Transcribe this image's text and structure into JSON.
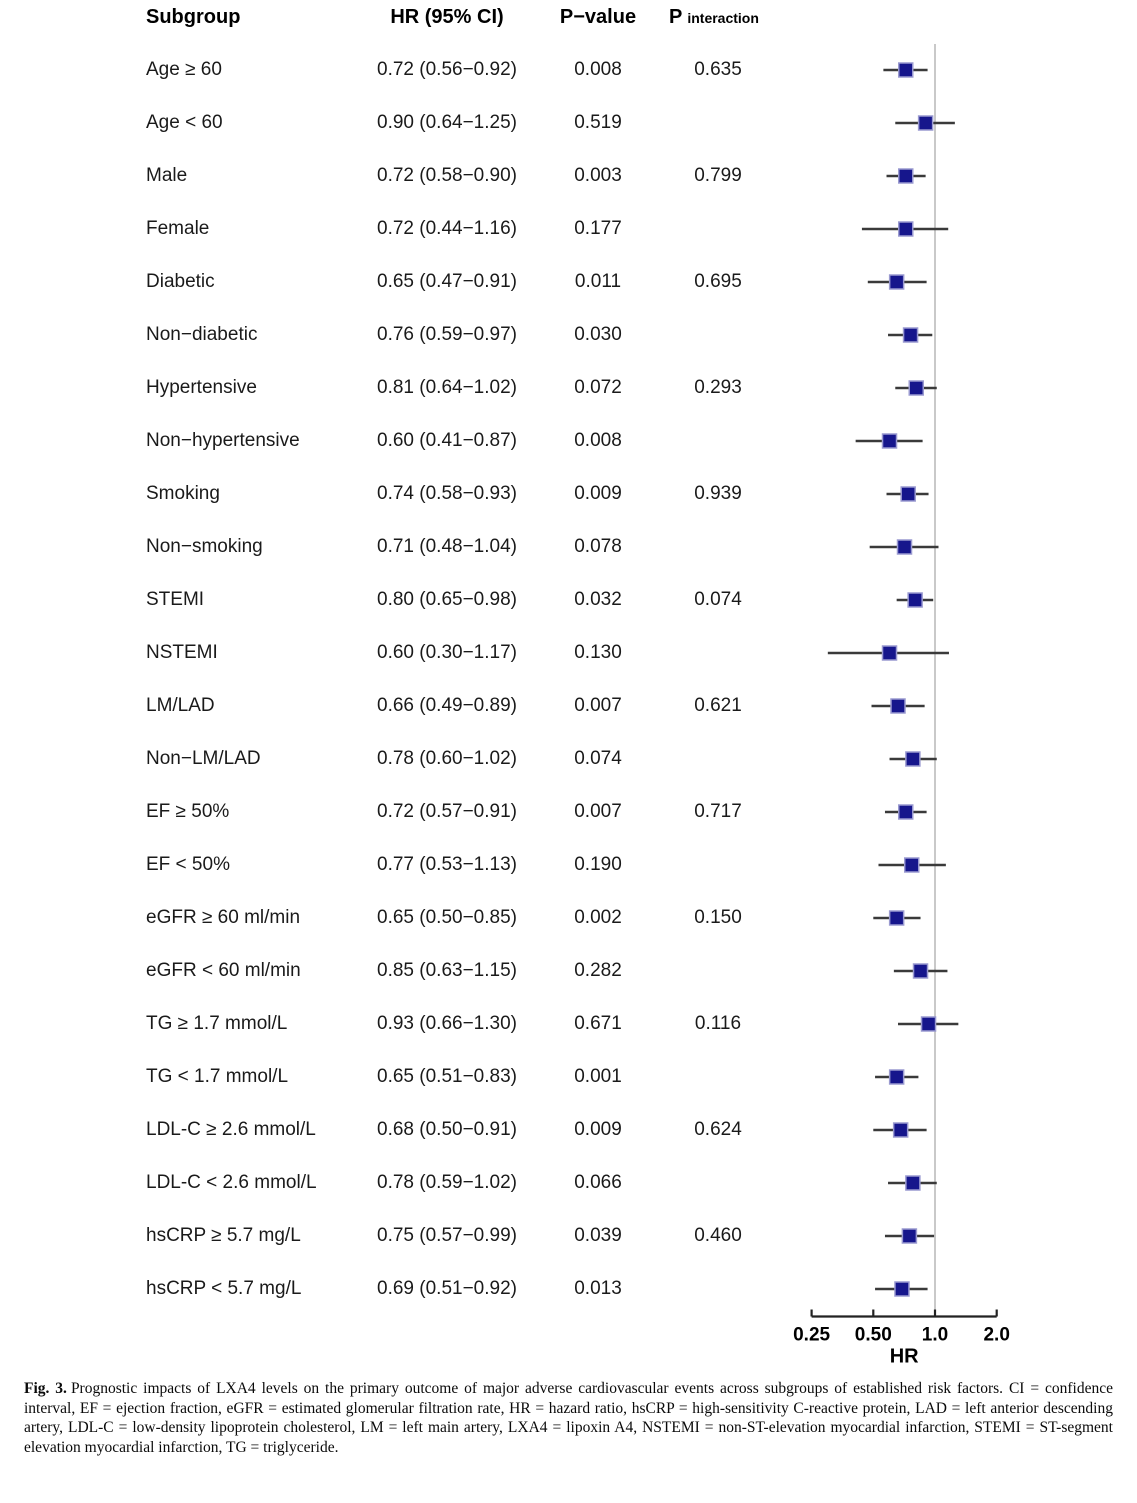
{
  "table": {
    "headers": {
      "subgroup": "Subgroup",
      "hr_ci": "HR (95% CI)",
      "p_value": "P−value",
      "p_interaction_main": "P",
      "p_interaction_sub": "interaction"
    }
  },
  "chart_data": {
    "type": "forest",
    "xlabel": "HR",
    "x_scale": "log2",
    "x_ticks": [
      0.25,
      0.5,
      1.0,
      2.0
    ],
    "x_tick_labels": [
      "0.25",
      "0.50",
      "1.0",
      "2.0"
    ],
    "x_range": [
      0.25,
      2.0
    ],
    "reference_line": 1.0,
    "grid": false,
    "rows": [
      {
        "subgroup": "Age ≥ 60",
        "hr": 0.72,
        "ci_low": 0.56,
        "ci_high": 0.92,
        "hr_ci_text": "0.72 (0.56−0.92)",
        "p_value": "0.008",
        "p_interaction": "0.635"
      },
      {
        "subgroup": "Age < 60",
        "hr": 0.9,
        "ci_low": 0.64,
        "ci_high": 1.25,
        "hr_ci_text": "0.90 (0.64−1.25)",
        "p_value": "0.519",
        "p_interaction": ""
      },
      {
        "subgroup": "Male",
        "hr": 0.72,
        "ci_low": 0.58,
        "ci_high": 0.9,
        "hr_ci_text": "0.72 (0.58−0.90)",
        "p_value": "0.003",
        "p_interaction": "0.799"
      },
      {
        "subgroup": "Female",
        "hr": 0.72,
        "ci_low": 0.44,
        "ci_high": 1.16,
        "hr_ci_text": "0.72 (0.44−1.16)",
        "p_value": "0.177",
        "p_interaction": ""
      },
      {
        "subgroup": "Diabetic",
        "hr": 0.65,
        "ci_low": 0.47,
        "ci_high": 0.91,
        "hr_ci_text": "0.65 (0.47−0.91)",
        "p_value": "0.011",
        "p_interaction": "0.695"
      },
      {
        "subgroup": "Non−diabetic",
        "hr": 0.76,
        "ci_low": 0.59,
        "ci_high": 0.97,
        "hr_ci_text": "0.76 (0.59−0.97)",
        "p_value": "0.030",
        "p_interaction": ""
      },
      {
        "subgroup": "Hypertensive",
        "hr": 0.81,
        "ci_low": 0.64,
        "ci_high": 1.02,
        "hr_ci_text": "0.81 (0.64−1.02)",
        "p_value": "0.072",
        "p_interaction": "0.293"
      },
      {
        "subgroup": "Non−hypertensive",
        "hr": 0.6,
        "ci_low": 0.41,
        "ci_high": 0.87,
        "hr_ci_text": "0.60 (0.41−0.87)",
        "p_value": "0.008",
        "p_interaction": ""
      },
      {
        "subgroup": "Smoking",
        "hr": 0.74,
        "ci_low": 0.58,
        "ci_high": 0.93,
        "hr_ci_text": "0.74 (0.58−0.93)",
        "p_value": "0.009",
        "p_interaction": "0.939"
      },
      {
        "subgroup": "Non−smoking",
        "hr": 0.71,
        "ci_low": 0.48,
        "ci_high": 1.04,
        "hr_ci_text": "0.71 (0.48−1.04)",
        "p_value": "0.078",
        "p_interaction": ""
      },
      {
        "subgroup": "STEMI",
        "hr": 0.8,
        "ci_low": 0.65,
        "ci_high": 0.98,
        "hr_ci_text": "0.80 (0.65−0.98)",
        "p_value": "0.032",
        "p_interaction": "0.074"
      },
      {
        "subgroup": "NSTEMI",
        "hr": 0.6,
        "ci_low": 0.3,
        "ci_high": 1.17,
        "hr_ci_text": "0.60 (0.30−1.17)",
        "p_value": "0.130",
        "p_interaction": ""
      },
      {
        "subgroup": "LM/LAD",
        "hr": 0.66,
        "ci_low": 0.49,
        "ci_high": 0.89,
        "hr_ci_text": "0.66 (0.49−0.89)",
        "p_value": "0.007",
        "p_interaction": "0.621"
      },
      {
        "subgroup": "Non−LM/LAD",
        "hr": 0.78,
        "ci_low": 0.6,
        "ci_high": 1.02,
        "hr_ci_text": "0.78 (0.60−1.02)",
        "p_value": "0.074",
        "p_interaction": ""
      },
      {
        "subgroup": "EF ≥ 50%",
        "hr": 0.72,
        "ci_low": 0.57,
        "ci_high": 0.91,
        "hr_ci_text": "0.72 (0.57−0.91)",
        "p_value": "0.007",
        "p_interaction": "0.717"
      },
      {
        "subgroup": "EF < 50%",
        "hr": 0.77,
        "ci_low": 0.53,
        "ci_high": 1.13,
        "hr_ci_text": "0.77 (0.53−1.13)",
        "p_value": "0.190",
        "p_interaction": ""
      },
      {
        "subgroup": "eGFR ≥ 60 ml/min",
        "hr": 0.65,
        "ci_low": 0.5,
        "ci_high": 0.85,
        "hr_ci_text": "0.65 (0.50−0.85)",
        "p_value": "0.002",
        "p_interaction": "0.150"
      },
      {
        "subgroup": "eGFR < 60 ml/min",
        "hr": 0.85,
        "ci_low": 0.63,
        "ci_high": 1.15,
        "hr_ci_text": "0.85 (0.63−1.15)",
        "p_value": "0.282",
        "p_interaction": ""
      },
      {
        "subgroup": "TG ≥ 1.7 mmol/L",
        "hr": 0.93,
        "ci_low": 0.66,
        "ci_high": 1.3,
        "hr_ci_text": "0.93 (0.66−1.30)",
        "p_value": "0.671",
        "p_interaction": "0.116"
      },
      {
        "subgroup": "TG < 1.7 mmol/L",
        "hr": 0.65,
        "ci_low": 0.51,
        "ci_high": 0.83,
        "hr_ci_text": "0.65 (0.51−0.83)",
        "p_value": "0.001",
        "p_interaction": ""
      },
      {
        "subgroup": "LDL-C ≥ 2.6 mmol/L",
        "hr": 0.68,
        "ci_low": 0.5,
        "ci_high": 0.91,
        "hr_ci_text": "0.68 (0.50−0.91)",
        "p_value": "0.009",
        "p_interaction": "0.624"
      },
      {
        "subgroup": "LDL-C < 2.6 mmol/L",
        "hr": 0.78,
        "ci_low": 0.59,
        "ci_high": 1.02,
        "hr_ci_text": "0.78 (0.59−1.02)",
        "p_value": "0.066",
        "p_interaction": ""
      },
      {
        "subgroup": "hsCRP ≥ 5.7 mg/L",
        "hr": 0.75,
        "ci_low": 0.57,
        "ci_high": 0.99,
        "hr_ci_text": "0.75 (0.57−0.99)",
        "p_value": "0.039",
        "p_interaction": "0.460"
      },
      {
        "subgroup": "hsCRP < 5.7 mg/L",
        "hr": 0.69,
        "ci_low": 0.51,
        "ci_high": 0.92,
        "hr_ci_text": "0.69 (0.51−0.92)",
        "p_value": "0.013",
        "p_interaction": ""
      }
    ]
  },
  "colors": {
    "marker_fill": "#16168c",
    "marker_stroke": "#9a9ad0",
    "ci_line": "#3a3a3a",
    "reference_line": "#c9c9c9",
    "axis": "#222222",
    "text": "#000000"
  },
  "caption": {
    "label": "Fig. 3.",
    "text": "Prognostic impacts of LXA4 levels on the primary outcome of major adverse cardiovascular events across subgroups of established risk factors. CI = confidence interval, EF = ejection fraction, eGFR = estimated glomerular filtration rate, HR = hazard ratio, hsCRP = high-sensitivity C-reactive protein, LAD = left anterior descending artery, LDL-C = low-density lipoprotein cholesterol, LM = left main artery, LXA4 = lipoxin A4, NSTEMI = non-ST-elevation myocardial infarction, STEMI = ST-segment elevation myocardial infarction, TG = triglyceride."
  }
}
